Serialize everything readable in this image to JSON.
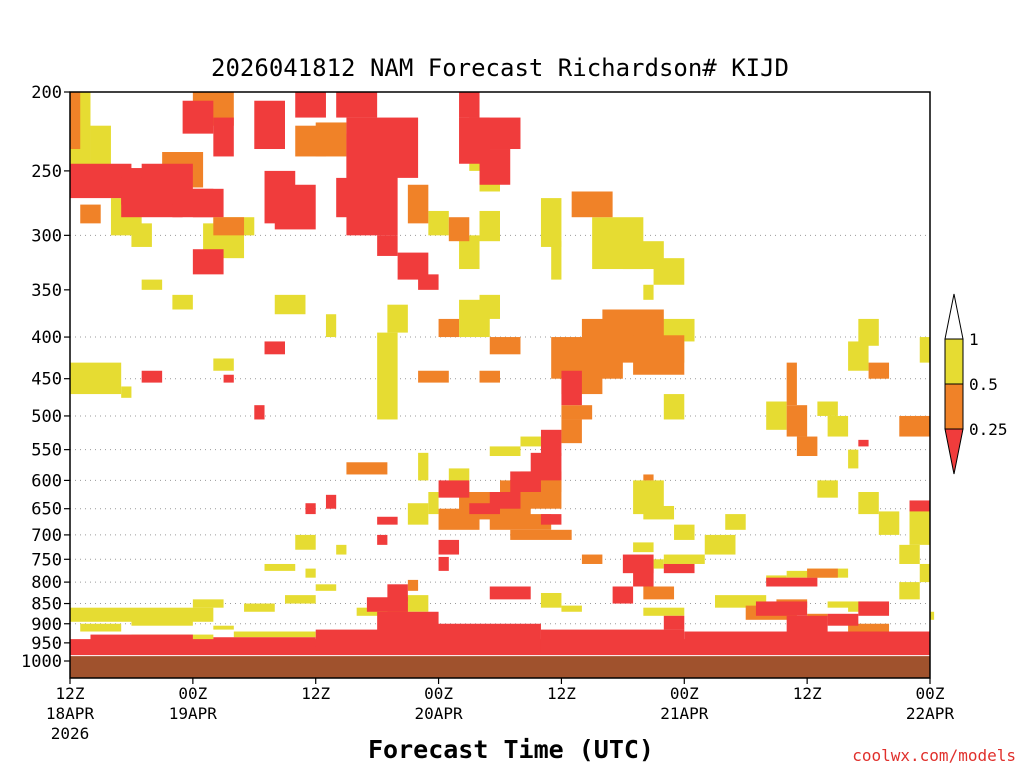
{
  "chart_data": {
    "type": "heatmap",
    "title": "2026041812 NAM Forecast Richardson# KIJD",
    "xlabel": "Forecast Time (UTC)",
    "ylabel": "",
    "credit": "coolwx.com/models",
    "y_scale": "log-pressure",
    "y_range_hPa": [
      1000,
      200
    ],
    "y_ticks": [
      200,
      250,
      300,
      350,
      400,
      450,
      500,
      550,
      600,
      650,
      700,
      750,
      800,
      850,
      900,
      950,
      1000
    ],
    "y_tick_labels": [
      "200",
      "250",
      "300",
      "350",
      "400",
      "450",
      "500",
      "550",
      "600",
      "650",
      "700",
      "750",
      "800",
      "850",
      "900",
      "950",
      "1000"
    ],
    "x_range_hours": [
      0,
      84
    ],
    "x_ticks": [
      {
        "hour": 0,
        "line1": "12Z",
        "line2": "18APR",
        "line3": "2026"
      },
      {
        "hour": 12,
        "line1": "00Z",
        "line2": "19APR",
        "line3": ""
      },
      {
        "hour": 24,
        "line1": "12Z",
        "line2": "",
        "line3": ""
      },
      {
        "hour": 36,
        "line1": "00Z",
        "line2": "20APR",
        "line3": ""
      },
      {
        "hour": 48,
        "line1": "12Z",
        "line2": "",
        "line3": ""
      },
      {
        "hour": 60,
        "line1": "00Z",
        "line2": "21APR",
        "line3": ""
      },
      {
        "hour": 72,
        "line1": "12Z",
        "line2": "",
        "line3": ""
      },
      {
        "hour": 84,
        "line1": "00Z",
        "line2": "22APR",
        "line3": ""
      }
    ],
    "gridlines_hPa": [
      300,
      400,
      450,
      500,
      550,
      600,
      650,
      700,
      750,
      800,
      850,
      900,
      950
    ],
    "legend": {
      "placement": "right",
      "labels": [
        "1",
        "0.5",
        "0.25"
      ],
      "categories": [
        {
          "range": "< 0.25",
          "color": "#f03c3c"
        },
        {
          "range": "0.25 - 0.5",
          "color": "#f08228"
        },
        {
          "range": "0.5 - 1",
          "color": "#e6dc32"
        },
        {
          "range": "> 1",
          "color": "#ffffff"
        }
      ]
    },
    "colors": {
      "red": "#f03c3c",
      "orange": "#f08228",
      "yellow": "#e6dc32",
      "ground": "#a0522d"
    },
    "ground_level_hPa": 985,
    "regions_hour_hPa": {
      "red": [
        [
          0,
          6,
          245,
          270
        ],
        [
          5,
          10,
          248,
          275
        ],
        [
          5,
          11,
          255,
          285
        ],
        [
          7,
          12,
          245,
          275
        ],
        [
          10,
          14,
          263,
          285
        ],
        [
          12,
          15,
          263,
          285
        ],
        [
          11,
          14,
          205,
          225
        ],
        [
          14,
          16,
          215,
          240
        ],
        [
          18,
          21,
          205,
          235
        ],
        [
          19,
          22,
          250,
          290
        ],
        [
          20,
          24,
          260,
          295
        ],
        [
          22,
          25,
          200,
          215
        ],
        [
          26,
          30,
          200,
          215
        ],
        [
          27,
          34,
          215,
          255
        ],
        [
          26,
          31,
          255,
          285
        ],
        [
          27,
          32,
          225,
          300
        ],
        [
          30,
          32,
          300,
          318
        ],
        [
          34,
          36,
          335,
          350
        ],
        [
          38,
          40,
          200,
          215
        ],
        [
          38,
          41,
          215,
          245
        ],
        [
          12,
          15,
          312,
          335
        ],
        [
          19,
          21,
          405,
          420
        ],
        [
          18,
          19,
          485,
          505
        ],
        [
          7,
          9,
          440,
          455
        ],
        [
          15,
          16,
          445,
          455
        ],
        [
          32,
          35,
          315,
          340
        ],
        [
          40,
          43,
          235,
          260
        ],
        [
          39,
          44,
          215,
          235
        ],
        [
          30,
          36,
          870,
          940
        ],
        [
          35,
          40,
          905,
          960
        ],
        [
          0,
          84,
          940,
          990
        ],
        [
          2,
          12,
          928,
          948
        ],
        [
          14,
          24,
          935,
          960
        ],
        [
          24,
          34,
          915,
          970
        ],
        [
          34,
          46,
          900,
          975
        ],
        [
          46,
          60,
          915,
          985
        ],
        [
          60,
          84,
          920,
          985
        ],
        [
          29,
          33,
          835,
          870
        ],
        [
          31,
          33,
          805,
          845
        ],
        [
          36,
          37,
          745,
          775
        ],
        [
          36,
          38,
          710,
          740
        ],
        [
          39,
          42,
          640,
          660
        ],
        [
          41,
          44,
          620,
          650
        ],
        [
          43,
          46,
          585,
          620
        ],
        [
          45,
          48,
          555,
          600
        ],
        [
          46,
          48,
          520,
          560
        ],
        [
          48,
          50,
          440,
          485
        ],
        [
          54,
          57,
          740,
          780
        ],
        [
          55,
          57,
          770,
          810
        ],
        [
          53,
          55,
          810,
          850
        ],
        [
          58,
          61,
          760,
          780
        ],
        [
          58,
          60,
          880,
          915
        ],
        [
          68,
          73,
          790,
          810
        ],
        [
          67,
          72,
          845,
          880
        ],
        [
          70,
          74,
          880,
          925
        ],
        [
          74,
          77,
          875,
          905
        ],
        [
          77,
          80,
          845,
          880
        ],
        [
          82,
          84,
          635,
          655
        ],
        [
          77,
          78,
          535,
          545
        ],
        [
          41,
          45,
          810,
          840
        ],
        [
          36,
          39,
          600,
          630
        ],
        [
          23,
          24,
          640,
          660
        ],
        [
          25,
          26,
          625,
          650
        ],
        [
          30,
          32,
          665,
          680
        ],
        [
          30,
          31,
          700,
          720
        ],
        [
          46,
          48,
          660,
          680
        ]
      ],
      "orange": [
        [
          0,
          1,
          200,
          235
        ],
        [
          1,
          3,
          275,
          290
        ],
        [
          9,
          13,
          237,
          262
        ],
        [
          12,
          16,
          200,
          220
        ],
        [
          14,
          17,
          285,
          300
        ],
        [
          22,
          25,
          220,
          240
        ],
        [
          24,
          27,
          218,
          240
        ],
        [
          29,
          31,
          225,
          245
        ],
        [
          37,
          39,
          285,
          305
        ],
        [
          36,
          38,
          380,
          400
        ],
        [
          33,
          35,
          260,
          290
        ],
        [
          41,
          44,
          400,
          420
        ],
        [
          34,
          37,
          440,
          455
        ],
        [
          36,
          40,
          650,
          690
        ],
        [
          38,
          45,
          620,
          670
        ],
        [
          41,
          47,
          660,
          690
        ],
        [
          43,
          49,
          690,
          710
        ],
        [
          42,
          48,
          600,
          650
        ],
        [
          44,
          48,
          585,
          620
        ],
        [
          48,
          50,
          505,
          540
        ],
        [
          48,
          51,
          485,
          505
        ],
        [
          47,
          51,
          400,
          450
        ],
        [
          50,
          54,
          380,
          450
        ],
        [
          52,
          58,
          370,
          430
        ],
        [
          55,
          60,
          398,
          445
        ],
        [
          56,
          57,
          590,
          600
        ],
        [
          48,
          52,
          445,
          470
        ],
        [
          49,
          53,
          265,
          285
        ],
        [
          50,
          52,
          740,
          760
        ],
        [
          56,
          59,
          810,
          840
        ],
        [
          66,
          71,
          855,
          890
        ],
        [
          72,
          75,
          770,
          790
        ],
        [
          72,
          74,
          875,
          895
        ],
        [
          76,
          80,
          900,
          925
        ],
        [
          69,
          72,
          840,
          860
        ],
        [
          70,
          71,
          430,
          485
        ],
        [
          70,
          72,
          485,
          530
        ],
        [
          71,
          73,
          530,
          560
        ],
        [
          78,
          80,
          430,
          450
        ],
        [
          81,
          84,
          500,
          530
        ],
        [
          40,
          42,
          440,
          455
        ],
        [
          27,
          31,
          570,
          590
        ],
        [
          33,
          34,
          795,
          820
        ],
        [
          31,
          33,
          850,
          880
        ]
      ],
      "yellow": [
        [
          0,
          2,
          200,
          250
        ],
        [
          2,
          4,
          220,
          260
        ],
        [
          4,
          7,
          270,
          300
        ],
        [
          6,
          8,
          290,
          310
        ],
        [
          13,
          17,
          290,
          320
        ],
        [
          7,
          9,
          340,
          350
        ],
        [
          10,
          12,
          355,
          370
        ],
        [
          0,
          5,
          430,
          470
        ],
        [
          5,
          6,
          460,
          475
        ],
        [
          14,
          16,
          425,
          440
        ],
        [
          20,
          23,
          355,
          375
        ],
        [
          25,
          26,
          375,
          400
        ],
        [
          31,
          33,
          365,
          395
        ],
        [
          30,
          32,
          395,
          505
        ],
        [
          34,
          35,
          555,
          600
        ],
        [
          35,
          36,
          620,
          660
        ],
        [
          37,
          39,
          580,
          620
        ],
        [
          33,
          35,
          640,
          680
        ],
        [
          22,
          24,
          700,
          730
        ],
        [
          26,
          27,
          720,
          740
        ],
        [
          19,
          22,
          760,
          775
        ],
        [
          23,
          24,
          770,
          790
        ],
        [
          24,
          26,
          805,
          820
        ],
        [
          32,
          35,
          830,
          870
        ],
        [
          38,
          41,
          360,
          400
        ],
        [
          40,
          42,
          355,
          380
        ],
        [
          39,
          41,
          225,
          250
        ],
        [
          38,
          40,
          300,
          330
        ],
        [
          35,
          37,
          280,
          300
        ],
        [
          40,
          42,
          250,
          265
        ],
        [
          40,
          42,
          280,
          305
        ],
        [
          46,
          48,
          270,
          310
        ],
        [
          47,
          48,
          305,
          340
        ],
        [
          51,
          56,
          285,
          330
        ],
        [
          54,
          58,
          305,
          330
        ],
        [
          56,
          57,
          345,
          360
        ],
        [
          57,
          60,
          320,
          345
        ],
        [
          57,
          61,
          380,
          405
        ],
        [
          55,
          60,
          400,
          430
        ],
        [
          58,
          60,
          470,
          505
        ],
        [
          55,
          58,
          600,
          660
        ],
        [
          56,
          59,
          645,
          670
        ],
        [
          59,
          61,
          680,
          710
        ],
        [
          58,
          62,
          740,
          760
        ],
        [
          55,
          57,
          715,
          735
        ],
        [
          57,
          58,
          750,
          770
        ],
        [
          62,
          65,
          700,
          740
        ],
        [
          64,
          66,
          660,
          690
        ],
        [
          68,
          70,
          785,
          800
        ],
        [
          70,
          73,
          775,
          790
        ],
        [
          72,
          76,
          770,
          790
        ],
        [
          68,
          70,
          480,
          520
        ],
        [
          73,
          75,
          480,
          500
        ],
        [
          74,
          76,
          500,
          530
        ],
        [
          76,
          77,
          550,
          580
        ],
        [
          73,
          75,
          600,
          630
        ],
        [
          77,
          79,
          620,
          660
        ],
        [
          79,
          81,
          655,
          700
        ],
        [
          81,
          83,
          720,
          760
        ],
        [
          82,
          84,
          650,
          720
        ],
        [
          81,
          83,
          800,
          840
        ],
        [
          83,
          84,
          760,
          800
        ],
        [
          84,
          84,
          870,
          890
        ],
        [
          76,
          78,
          405,
          440
        ],
        [
          77,
          79,
          380,
          410
        ],
        [
          83,
          84,
          400,
          430
        ],
        [
          14,
          18,
          285,
          300
        ],
        [
          0,
          14,
          860,
          895
        ],
        [
          1,
          5,
          900,
          920
        ],
        [
          6,
          12,
          890,
          905
        ],
        [
          14,
          16,
          905,
          915
        ],
        [
          16,
          24,
          920,
          935
        ],
        [
          6,
          14,
          928,
          945
        ],
        [
          12,
          15,
          840,
          860
        ],
        [
          17,
          20,
          850,
          870
        ],
        [
          21,
          24,
          830,
          850
        ],
        [
          28,
          32,
          860,
          880
        ],
        [
          46,
          48,
          825,
          860
        ],
        [
          48,
          50,
          855,
          870
        ],
        [
          56,
          60,
          860,
          880
        ],
        [
          63,
          68,
          830,
          860
        ],
        [
          76,
          80,
          850,
          870
        ],
        [
          74,
          78,
          845,
          860
        ],
        [
          41,
          44,
          545,
          560
        ],
        [
          44,
          46,
          530,
          545
        ]
      ]
    }
  }
}
